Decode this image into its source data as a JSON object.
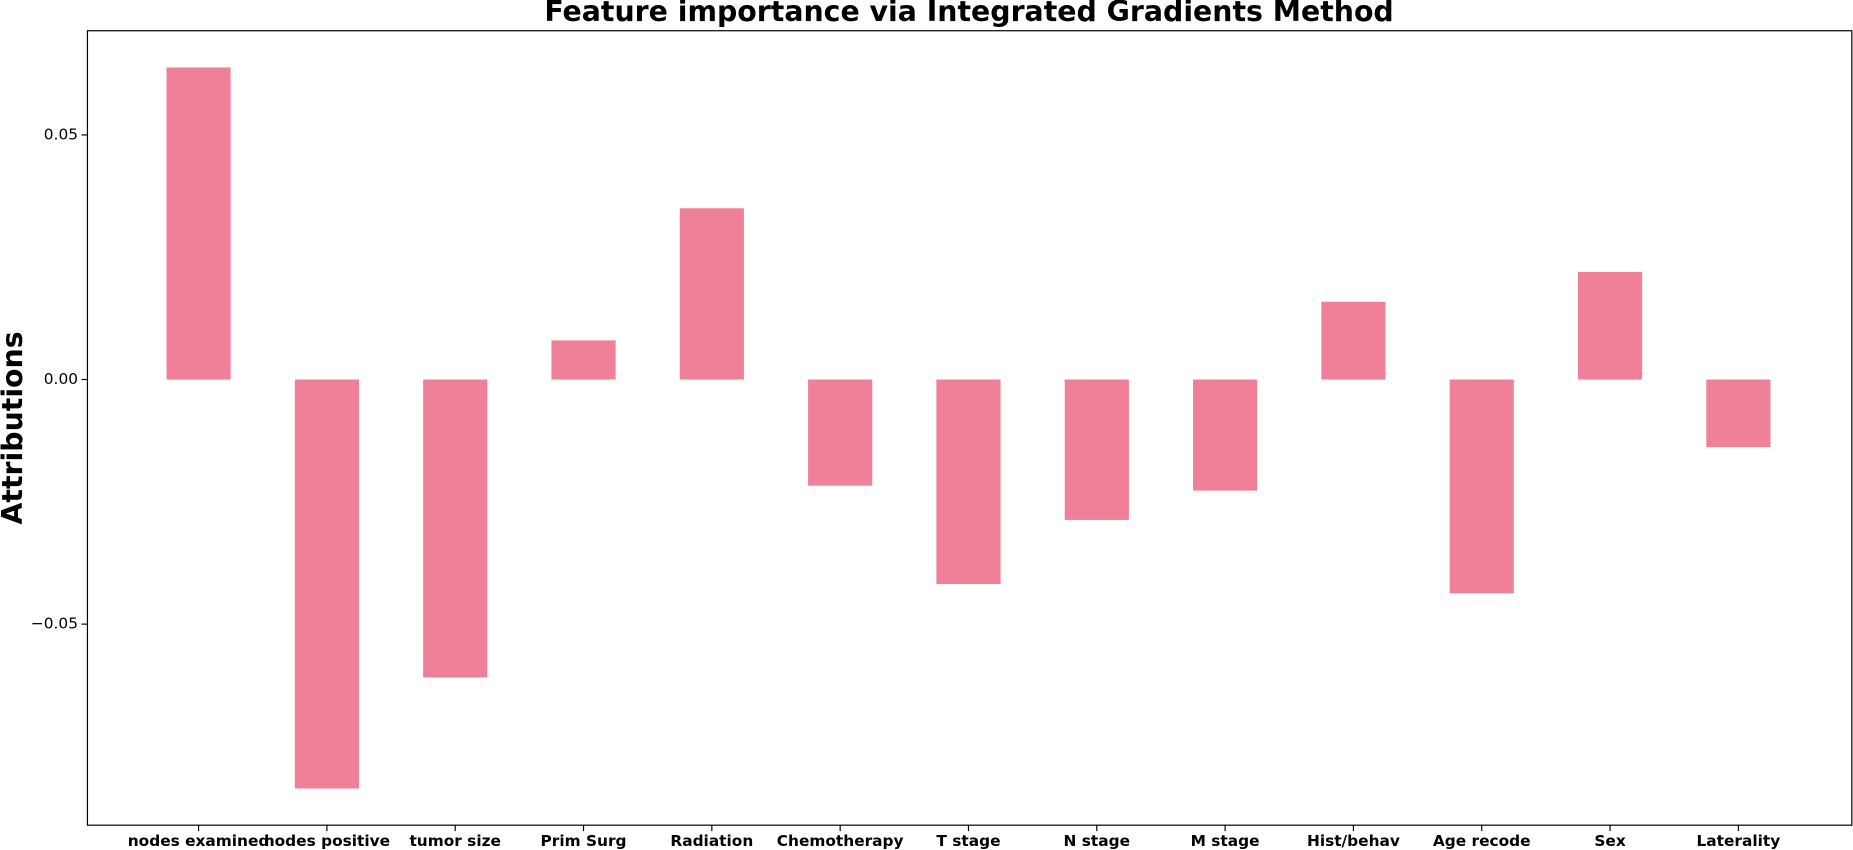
{
  "chart_data": {
    "type": "bar",
    "title": "Feature importance via Integrated Gradients Method",
    "y_label": "Attributions",
    "categories": [
      "nodes examined",
      "nodes positive",
      "tumor size",
      "Prim Surg",
      "Radiation",
      "Chemotherapy",
      "T stage",
      "N stage",
      "M stage",
      "Hist/behav",
      "Age recode",
      "Sex",
      "Laterality"
    ],
    "values": [
      0.0638,
      -0.0836,
      -0.0609,
      0.008,
      0.035,
      -0.0217,
      -0.0418,
      -0.0287,
      -0.0227,
      0.0159,
      -0.0437,
      0.022,
      -0.0138
    ],
    "color": "#f07f98",
    "ylim": [
      -0.0911,
      0.0713
    ],
    "yticks": [
      {
        "value": -0.05,
        "label": "−0.05"
      },
      {
        "value": 0,
        "label": "0.00"
      },
      0.05
    ],
    "grid": false
  }
}
